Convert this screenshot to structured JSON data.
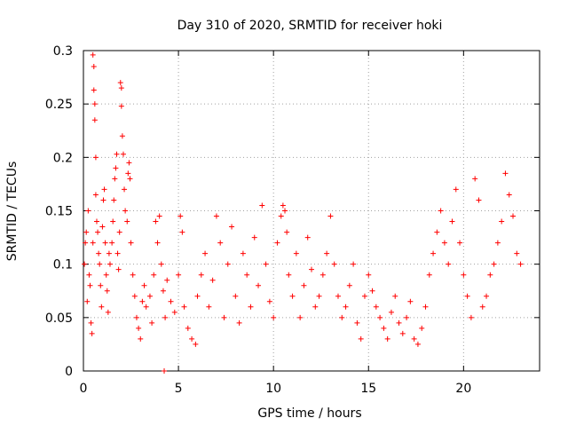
{
  "chart_data": {
    "type": "scatter",
    "title": "Day 310 of 2020, SRMTID for receiver hoki",
    "xlabel": "GPS time / hours",
    "ylabel": "SRMTID / TECUs",
    "xlim": [
      0,
      24
    ],
    "ylim": [
      0,
      0.3
    ],
    "xticks": [
      0,
      5,
      10,
      15,
      20
    ],
    "yticks": [
      0,
      0.05,
      0.1,
      0.15,
      0.2,
      0.25,
      0.3
    ],
    "xtick_labels": [
      "0",
      "5",
      "10",
      "15",
      "20"
    ],
    "ytick_labels": [
      "0",
      "0.05",
      "0.1",
      "0.15",
      "0.2",
      "0.25",
      "0.3"
    ],
    "grid": true,
    "marker": "+",
    "color": "#ff0000",
    "series": [
      {
        "name": "SRMTID",
        "points": [
          [
            0.05,
            0.1
          ],
          [
            0.1,
            0.12
          ],
          [
            0.15,
            0.13
          ],
          [
            0.2,
            0.065
          ],
          [
            0.25,
            0.15
          ],
          [
            0.3,
            0.09
          ],
          [
            0.35,
            0.08
          ],
          [
            0.4,
            0.045
          ],
          [
            0.45,
            0.035
          ],
          [
            0.5,
            0.12
          ],
          [
            0.5,
            0.296
          ],
          [
            0.55,
            0.285
          ],
          [
            0.55,
            0.263
          ],
          [
            0.6,
            0.25
          ],
          [
            0.6,
            0.235
          ],
          [
            0.65,
            0.2
          ],
          [
            0.65,
            0.165
          ],
          [
            0.7,
            0.14
          ],
          [
            0.75,
            0.13
          ],
          [
            0.8,
            0.11
          ],
          [
            0.85,
            0.1
          ],
          [
            0.9,
            0.08
          ],
          [
            0.95,
            0.06
          ],
          [
            1.0,
            0.135
          ],
          [
            1.05,
            0.16
          ],
          [
            1.1,
            0.17
          ],
          [
            1.15,
            0.12
          ],
          [
            1.2,
            0.09
          ],
          [
            1.25,
            0.075
          ],
          [
            1.3,
            0.055
          ],
          [
            1.35,
            0.11
          ],
          [
            1.4,
            0.1
          ],
          [
            1.5,
            0.12
          ],
          [
            1.55,
            0.14
          ],
          [
            1.6,
            0.16
          ],
          [
            1.65,
            0.18
          ],
          [
            1.7,
            0.19
          ],
          [
            1.75,
            0.203
          ],
          [
            1.8,
            0.11
          ],
          [
            1.85,
            0.095
          ],
          [
            1.9,
            0.13
          ],
          [
            1.95,
            0.27
          ],
          [
            2.0,
            0.265
          ],
          [
            2.0,
            0.248
          ],
          [
            2.05,
            0.22
          ],
          [
            2.1,
            0.203
          ],
          [
            2.15,
            0.17
          ],
          [
            2.2,
            0.15
          ],
          [
            2.3,
            0.14
          ],
          [
            2.35,
            0.185
          ],
          [
            2.4,
            0.195
          ],
          [
            2.45,
            0.18
          ],
          [
            2.5,
            0.12
          ],
          [
            2.6,
            0.09
          ],
          [
            2.7,
            0.07
          ],
          [
            2.8,
            0.05
          ],
          [
            2.9,
            0.04
          ],
          [
            3.0,
            0.03
          ],
          [
            3.1,
            0.065
          ],
          [
            3.2,
            0.08
          ],
          [
            3.3,
            0.06
          ],
          [
            3.5,
            0.07
          ],
          [
            3.6,
            0.045
          ],
          [
            3.7,
            0.09
          ],
          [
            3.8,
            0.14
          ],
          [
            3.9,
            0.12
          ],
          [
            4.0,
            0.145
          ],
          [
            4.1,
            0.1
          ],
          [
            4.2,
            0.075
          ],
          [
            4.25,
            0.0
          ],
          [
            4.3,
            0.05
          ],
          [
            4.4,
            0.085
          ],
          [
            4.6,
            0.065
          ],
          [
            4.8,
            0.055
          ],
          [
            5.0,
            0.09
          ],
          [
            5.1,
            0.145
          ],
          [
            5.2,
            0.13
          ],
          [
            5.3,
            0.06
          ],
          [
            5.5,
            0.04
          ],
          [
            5.7,
            0.03
          ],
          [
            5.9,
            0.025
          ],
          [
            6.0,
            0.07
          ],
          [
            6.2,
            0.09
          ],
          [
            6.4,
            0.11
          ],
          [
            6.6,
            0.06
          ],
          [
            6.8,
            0.085
          ],
          [
            7.0,
            0.145
          ],
          [
            7.2,
            0.12
          ],
          [
            7.4,
            0.05
          ],
          [
            7.6,
            0.1
          ],
          [
            7.8,
            0.135
          ],
          [
            8.0,
            0.07
          ],
          [
            8.2,
            0.045
          ],
          [
            8.4,
            0.11
          ],
          [
            8.6,
            0.09
          ],
          [
            8.8,
            0.06
          ],
          [
            9.0,
            0.125
          ],
          [
            9.2,
            0.08
          ],
          [
            9.4,
            0.155
          ],
          [
            9.6,
            0.1
          ],
          [
            9.8,
            0.065
          ],
          [
            10.0,
            0.05
          ],
          [
            10.2,
            0.12
          ],
          [
            10.4,
            0.145
          ],
          [
            10.5,
            0.155
          ],
          [
            10.6,
            0.15
          ],
          [
            10.7,
            0.13
          ],
          [
            10.8,
            0.09
          ],
          [
            11.0,
            0.07
          ],
          [
            11.2,
            0.11
          ],
          [
            11.4,
            0.05
          ],
          [
            11.6,
            0.08
          ],
          [
            11.8,
            0.125
          ],
          [
            12.0,
            0.095
          ],
          [
            12.2,
            0.06
          ],
          [
            12.4,
            0.07
          ],
          [
            12.6,
            0.09
          ],
          [
            12.8,
            0.11
          ],
          [
            13.0,
            0.145
          ],
          [
            13.2,
            0.1
          ],
          [
            13.4,
            0.07
          ],
          [
            13.6,
            0.05
          ],
          [
            13.8,
            0.06
          ],
          [
            14.0,
            0.08
          ],
          [
            14.2,
            0.1
          ],
          [
            14.4,
            0.045
          ],
          [
            14.6,
            0.03
          ],
          [
            14.8,
            0.07
          ],
          [
            15.0,
            0.09
          ],
          [
            15.2,
            0.075
          ],
          [
            15.4,
            0.06
          ],
          [
            15.6,
            0.05
          ],
          [
            15.8,
            0.04
          ],
          [
            16.0,
            0.03
          ],
          [
            16.2,
            0.055
          ],
          [
            16.4,
            0.07
          ],
          [
            16.6,
            0.045
          ],
          [
            16.8,
            0.035
          ],
          [
            17.0,
            0.05
          ],
          [
            17.2,
            0.065
          ],
          [
            17.4,
            0.03
          ],
          [
            17.6,
            0.025
          ],
          [
            17.8,
            0.04
          ],
          [
            18.0,
            0.06
          ],
          [
            18.2,
            0.09
          ],
          [
            18.4,
            0.11
          ],
          [
            18.6,
            0.13
          ],
          [
            18.8,
            0.15
          ],
          [
            19.0,
            0.12
          ],
          [
            19.2,
            0.1
          ],
          [
            19.4,
            0.14
          ],
          [
            19.6,
            0.17
          ],
          [
            19.8,
            0.12
          ],
          [
            20.0,
            0.09
          ],
          [
            20.2,
            0.07
          ],
          [
            20.4,
            0.05
          ],
          [
            20.6,
            0.18
          ],
          [
            20.8,
            0.16
          ],
          [
            21.0,
            0.06
          ],
          [
            21.2,
            0.07
          ],
          [
            21.4,
            0.09
          ],
          [
            21.6,
            0.1
          ],
          [
            21.8,
            0.12
          ],
          [
            22.0,
            0.14
          ],
          [
            22.2,
            0.185
          ],
          [
            22.4,
            0.165
          ],
          [
            22.6,
            0.145
          ],
          [
            22.8,
            0.11
          ],
          [
            23.0,
            0.1
          ]
        ]
      }
    ]
  }
}
